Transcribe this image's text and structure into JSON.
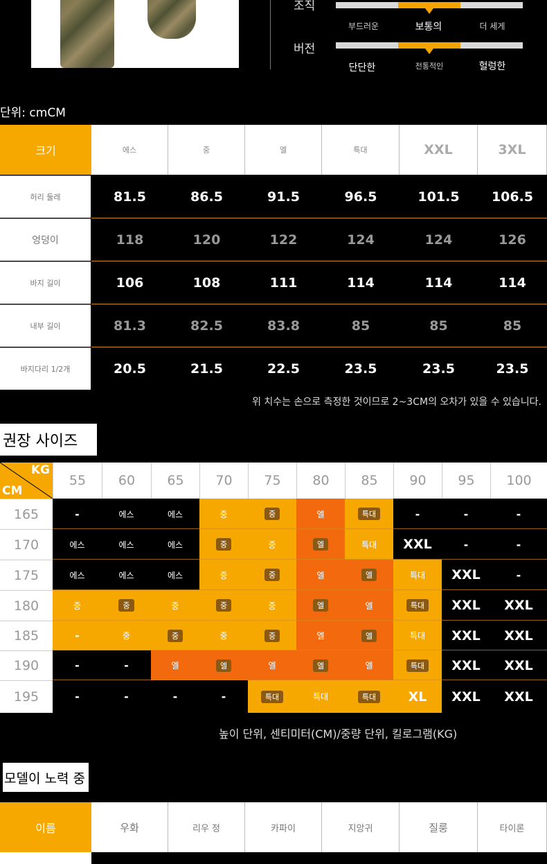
{
  "top": {
    "labels": [
      "조직",
      "버전"
    ],
    "scale1": [
      "부드러운",
      "보통의",
      "더 세게"
    ],
    "scale2": [
      "단단한",
      "전통적인",
      "헐렁한"
    ],
    "scale1_selected_index": 1,
    "scale2_selected_index": 1
  },
  "size_table": {
    "unit": "단위: cmCM",
    "header_label": "크기",
    "sizes": [
      "에스",
      "중",
      "엘",
      "특대",
      "XXL",
      "3XL"
    ],
    "rows": [
      {
        "label": "허리 둘레",
        "values": [
          "81.5",
          "86.5",
          "91.5",
          "96.5",
          "101.5",
          "106.5"
        ],
        "style": "bold"
      },
      {
        "label": "엉덩이",
        "values": [
          "118",
          "120",
          "122",
          "124",
          "124",
          "126"
        ],
        "style": "gray"
      },
      {
        "label": "바지 길이",
        "values": [
          "106",
          "108",
          "111",
          "114",
          "114",
          "114"
        ],
        "style": "bold"
      },
      {
        "label": "내부 길이",
        "values": [
          "81.3",
          "82.5",
          "83.8",
          "85",
          "85",
          "85"
        ],
        "style": "gray"
      },
      {
        "label": "바지다리 1/2개",
        "values": [
          "20.5",
          "21.5",
          "22.5",
          "23.5",
          "23.5",
          "23.5"
        ],
        "style": "bold"
      }
    ],
    "note": "위 치수는 손으로 측정한 것이므로 2~3CM의 오차가 있을 수 있습니다."
  },
  "recommend": {
    "title": "권장 사이즈",
    "corner_kg": "KG",
    "corner_cm": "CM",
    "weights": [
      "55",
      "60",
      "65",
      "70",
      "75",
      "80",
      "85",
      "90",
      "95",
      "100"
    ],
    "heights": [
      "165",
      "170",
      "175",
      "180",
      "185",
      "190",
      "195"
    ],
    "cells": [
      [
        "-",
        "에스",
        "에스",
        "중",
        "중",
        "엘",
        "특대",
        "-",
        "-",
        "-"
      ],
      [
        "에스",
        "에스",
        "에스",
        "중",
        "중",
        "엘",
        "특대",
        "XXL",
        "-",
        "-"
      ],
      [
        "에스",
        "에스",
        "에스",
        "중",
        "중",
        "엘",
        "엘",
        "특대",
        "XXL",
        "-"
      ],
      [
        "중",
        "중",
        "중",
        "중",
        "중",
        "엘",
        "엘",
        "특대",
        "XXL",
        "XXL"
      ],
      [
        "-",
        "중",
        "중",
        "중",
        "중",
        "엘",
        "엘",
        "특대",
        "XXL",
        "XXL"
      ],
      [
        "-",
        "-",
        "엘",
        "엘",
        "엘",
        "엘",
        "엘",
        "특대",
        "XXL",
        "XXL"
      ],
      [
        "-",
        "-",
        "-",
        "-",
        "특대",
        "특대",
        "특대",
        "XL",
        "XXL",
        "XXL"
      ]
    ],
    "colors": [
      [
        "k",
        "k",
        "k",
        "y",
        "y",
        "o",
        "y",
        "k",
        "k",
        "k"
      ],
      [
        "k",
        "k",
        "k",
        "y",
        "y",
        "o",
        "y",
        "k",
        "k",
        "k"
      ],
      [
        "k",
        "k",
        "k",
        "y",
        "y",
        "o",
        "o",
        "y",
        "k",
        "k"
      ],
      [
        "y",
        "y",
        "y",
        "y",
        "y",
        "o",
        "o",
        "y",
        "k",
        "k"
      ],
      [
        "y",
        "y",
        "y",
        "y",
        "y",
        "o",
        "o",
        "y",
        "k",
        "k"
      ],
      [
        "k",
        "k",
        "o",
        "o",
        "o",
        "o",
        "o",
        "y",
        "k",
        "k"
      ],
      [
        "k",
        "k",
        "k",
        "k",
        "y",
        "y",
        "y",
        "y",
        "k",
        "k"
      ]
    ],
    "note": "높이 단위, 센티미터(CM)/중량 단위, 킬로그램(KG)"
  },
  "models": {
    "title": "모델이 노력 중",
    "header_label": "이름",
    "names": [
      "우화",
      "리우 정",
      "카파이",
      "지앙귀",
      "질룽",
      "타이론"
    ]
  },
  "colors": {
    "accent": "#f7a800",
    "orange": "#f26a0d",
    "line": "#d68a1a"
  }
}
